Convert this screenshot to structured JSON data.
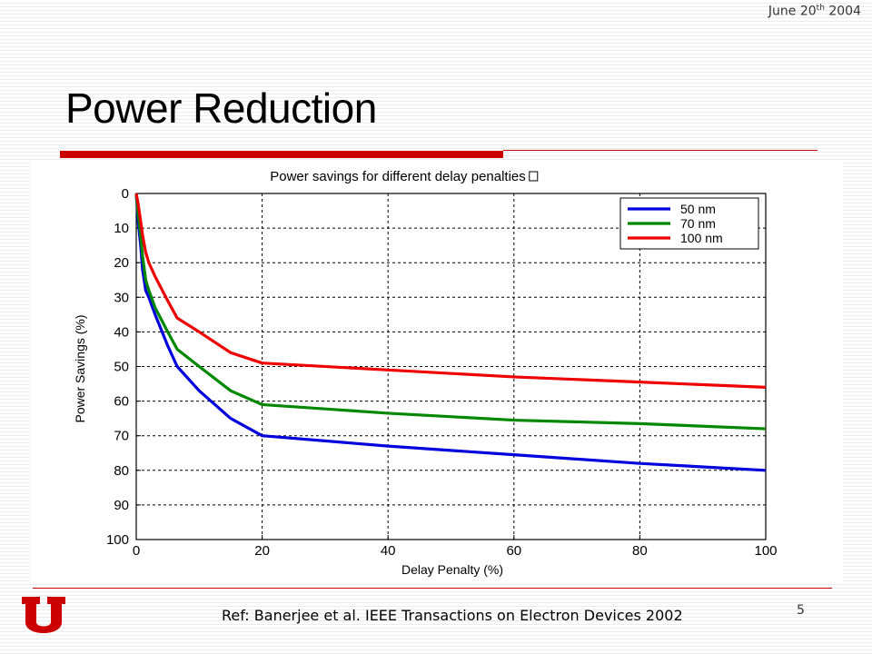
{
  "slide": {
    "date_main": "June 20",
    "date_sup": "th",
    "date_year": " 2004",
    "title": "Power Reduction",
    "reference": "Ref: Banerjee et al. IEEE Transactions on Electron Devices 2002",
    "page_number": "5",
    "accent_color": "#cc0000"
  },
  "chart_data": {
    "type": "line",
    "title": "Power savings for different delay penalties",
    "xlabel": "Delay Penalty (%)",
    "ylabel": "Power Savings (%)",
    "xlim": [
      0,
      100
    ],
    "ylim": [
      0,
      100
    ],
    "y_inverted": true,
    "x_ticks": [
      0,
      20,
      40,
      60,
      80,
      100
    ],
    "y_ticks": [
      0,
      10,
      20,
      30,
      40,
      50,
      60,
      70,
      80,
      90,
      100
    ],
    "grid": true,
    "legend_position": "top-right",
    "series": [
      {
        "name": "50 nm",
        "color": "#0000dd",
        "x": [
          0,
          0.3,
          0.7,
          1.0,
          1.5,
          2,
          3,
          5,
          6.5,
          10,
          15,
          20,
          40,
          60,
          80,
          100
        ],
        "y": [
          0,
          8,
          15,
          22,
          28,
          30,
          35,
          44,
          50,
          57,
          65,
          70,
          73,
          75.5,
          78,
          80
        ]
      },
      {
        "name": "70 nm",
        "color": "#008800",
        "x": [
          0,
          0.3,
          0.7,
          1.0,
          1.5,
          2,
          3,
          5,
          6.5,
          10,
          15,
          20,
          40,
          60,
          80,
          100
        ],
        "y": [
          0,
          6,
          12,
          18,
          25,
          28,
          33,
          40,
          45,
          50,
          57,
          61,
          63.5,
          65.5,
          66.5,
          68
        ]
      },
      {
        "name": "100 nm",
        "color": "#ee0000",
        "x": [
          0,
          0.3,
          0.7,
          1.0,
          1.5,
          2,
          3,
          5,
          6.5,
          10,
          15,
          20,
          40,
          60,
          80,
          100
        ],
        "y": [
          0,
          3,
          8,
          12,
          17,
          20,
          24,
          31,
          36,
          40,
          46,
          49,
          51,
          53,
          54.5,
          56
        ]
      }
    ]
  }
}
